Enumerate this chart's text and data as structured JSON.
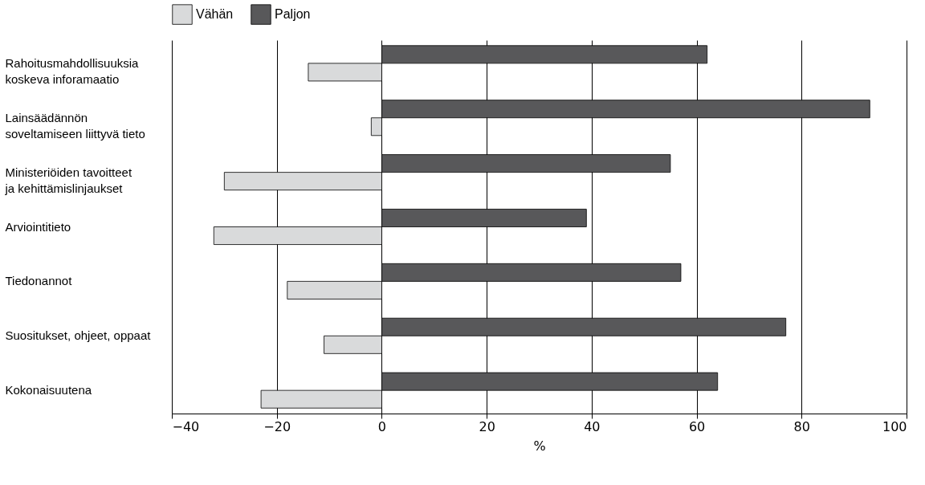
{
  "chart_data": {
    "type": "bar",
    "orientation": "horizontal",
    "xlabel": "%",
    "categories": [
      "Rahoitusmahdollisuuksia\nkoskeva inforamaatio",
      "Lainsäädännön\nsoveltamiseen liittyvä tieto",
      "Ministeriöiden tavoitteet\nja kehittämislinjaukset",
      "Arviointitieto",
      "Tiedonannot",
      "Suositukset, ohjeet, oppaat",
      "Kokonaisuutena"
    ],
    "series": [
      {
        "name": "Vähän",
        "color": "#d9dadb",
        "values": [
          -14,
          -2,
          -30,
          -32,
          -18,
          -11,
          -23
        ]
      },
      {
        "name": "Paljon",
        "color": "#58585a",
        "values": [
          62,
          93,
          55,
          39,
          57,
          77,
          64
        ]
      }
    ],
    "xlim": [
      -40,
      100
    ],
    "xticks": [
      -40,
      -20,
      0,
      20,
      40,
      60,
      80,
      100
    ],
    "grid": "x",
    "legend": "top"
  }
}
